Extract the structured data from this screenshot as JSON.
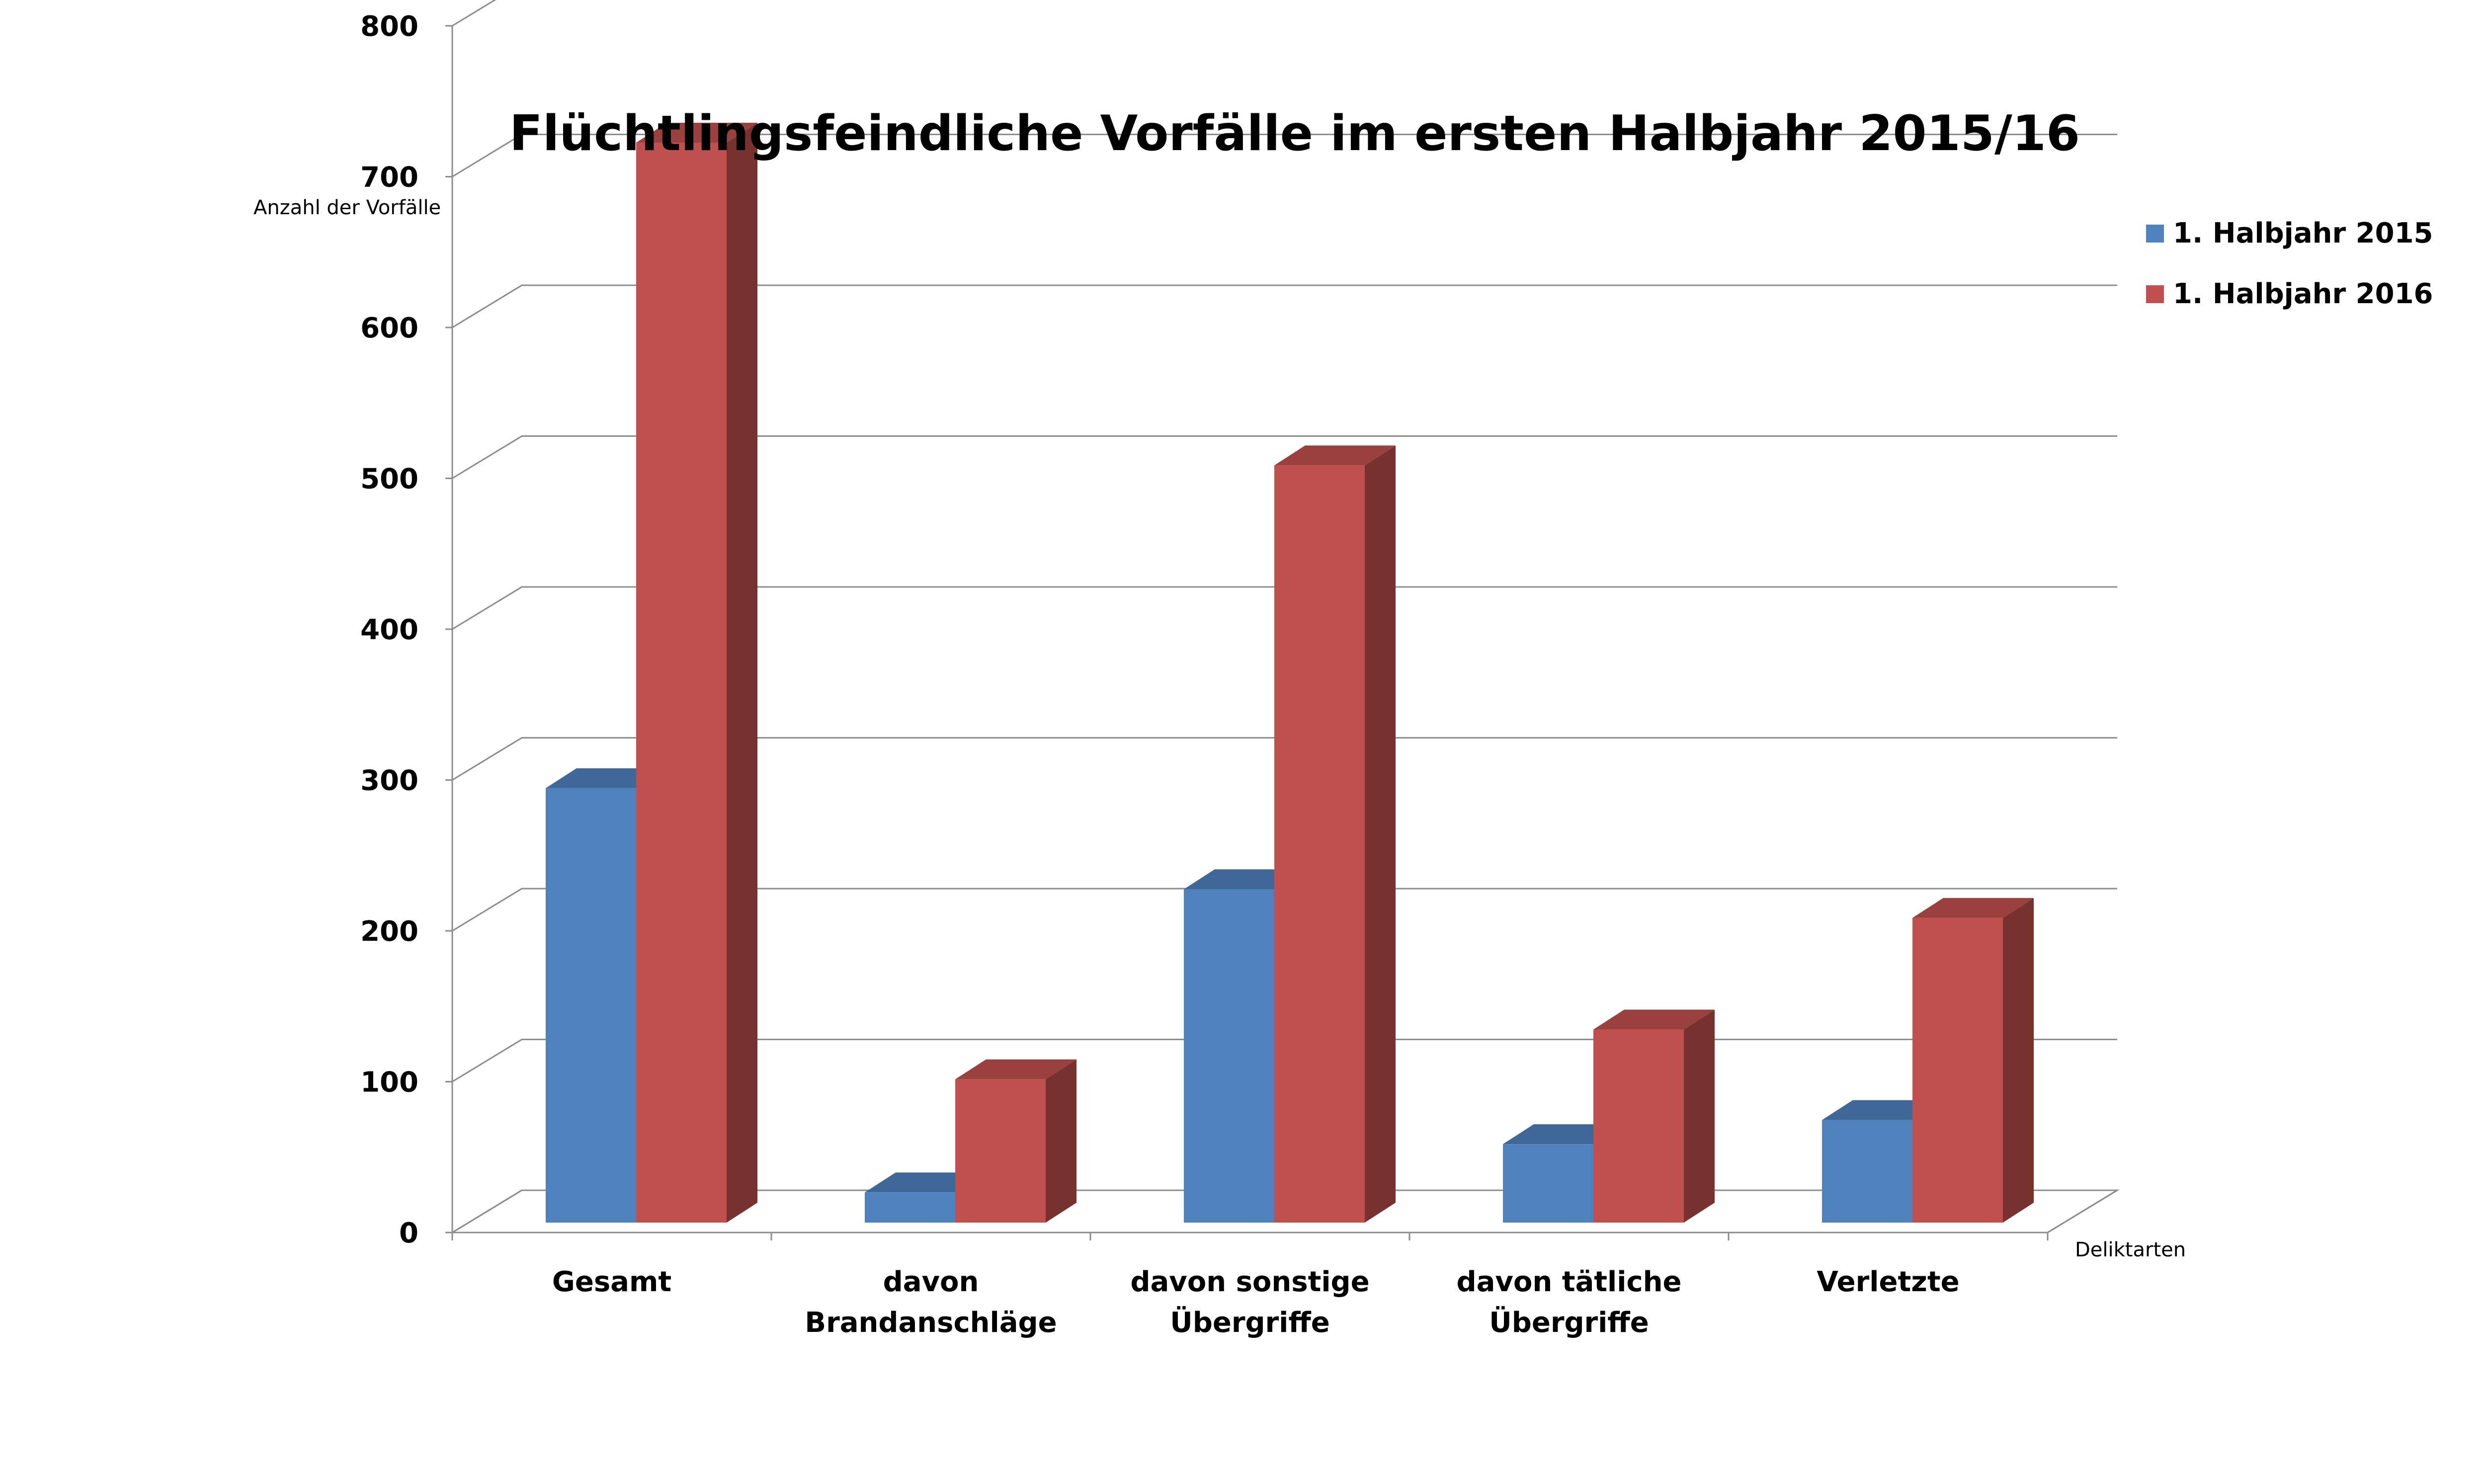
{
  "chart_data": {
    "type": "bar",
    "title": "Flüchtlingsfeindliche Vorfälle im ersten Halbjahr 2015/16",
    "ylabel": "Anzahl der Vorfälle",
    "xlabel": "Deliktarten",
    "ylim": [
      0,
      800
    ],
    "yticks": [
      "0",
      "100",
      "200",
      "300",
      "400",
      "500",
      "600",
      "700",
      "800"
    ],
    "grid": true,
    "legend_position": "top-right",
    "categories": [
      [
        "Gesamt"
      ],
      [
        "davon",
        "Brandanschläge"
      ],
      [
        "davon sonstige",
        "Übergriffe"
      ],
      [
        "davon tätliche",
        "Übergriffe"
      ],
      [
        "Verletzte"
      ]
    ],
    "series": [
      {
        "name": "1. Halbjahr 2015",
        "color": "#4f81bd",
        "values": [
          288,
          20,
          221,
          52,
          68
        ]
      },
      {
        "name": "1. Halbjahr 2016",
        "color": "#c0504d",
        "values": [
          716,
          95,
          502,
          128,
          202
        ]
      }
    ]
  }
}
